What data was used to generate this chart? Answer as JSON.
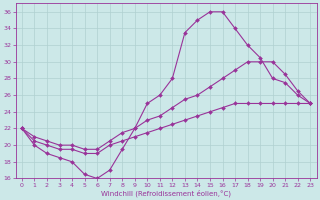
{
  "xlabel": "Windchill (Refroidissement éolien,°C)",
  "bg_color": "#cce8e8",
  "grid_color": "#b0d0d0",
  "line_color": "#993399",
  "xlim": [
    -0.5,
    23.5
  ],
  "ylim": [
    16,
    37
  ],
  "yticks": [
    16,
    18,
    20,
    22,
    24,
    26,
    28,
    30,
    32,
    34,
    36
  ],
  "xticks": [
    0,
    1,
    2,
    3,
    4,
    5,
    6,
    7,
    8,
    9,
    10,
    11,
    12,
    13,
    14,
    15,
    16,
    17,
    18,
    19,
    20,
    21,
    22,
    23
  ],
  "curve1_x": [
    0,
    1,
    2,
    3,
    4,
    5,
    6,
    7,
    8,
    9,
    10,
    11,
    12,
    13,
    14,
    15,
    16,
    17,
    18,
    19,
    20,
    21,
    22,
    23
  ],
  "curve1_y": [
    22,
    20,
    19,
    18.5,
    18,
    16.5,
    16,
    17,
    19.5,
    22,
    25,
    26,
    28,
    33.5,
    35,
    36,
    36,
    34,
    32,
    30.5,
    28,
    27.5,
    26,
    25
  ],
  "curve2_x": [
    0,
    1,
    2,
    3,
    4,
    5,
    6,
    7,
    8,
    9,
    10,
    11,
    12,
    13,
    14,
    15,
    16,
    17,
    18,
    19,
    20,
    21,
    22,
    23
  ],
  "curve2_y": [
    22,
    21,
    20.5,
    20,
    20,
    19.5,
    19.5,
    20.5,
    21.5,
    22,
    23,
    23.5,
    24.5,
    25.5,
    26,
    27,
    28,
    29,
    30,
    30,
    30,
    28.5,
    26.5,
    25
  ],
  "curve3_x": [
    0,
    1,
    2,
    3,
    4,
    5,
    6,
    7,
    8,
    9,
    10,
    11,
    12,
    13,
    14,
    15,
    16,
    17,
    18,
    19,
    20,
    21,
    22,
    23
  ],
  "curve3_y": [
    22,
    20.5,
    20,
    19.5,
    19.5,
    19,
    19,
    20,
    20.5,
    21,
    21.5,
    22,
    22.5,
    23,
    23.5,
    24,
    24.5,
    25,
    25,
    25,
    25,
    25,
    25,
    25
  ]
}
